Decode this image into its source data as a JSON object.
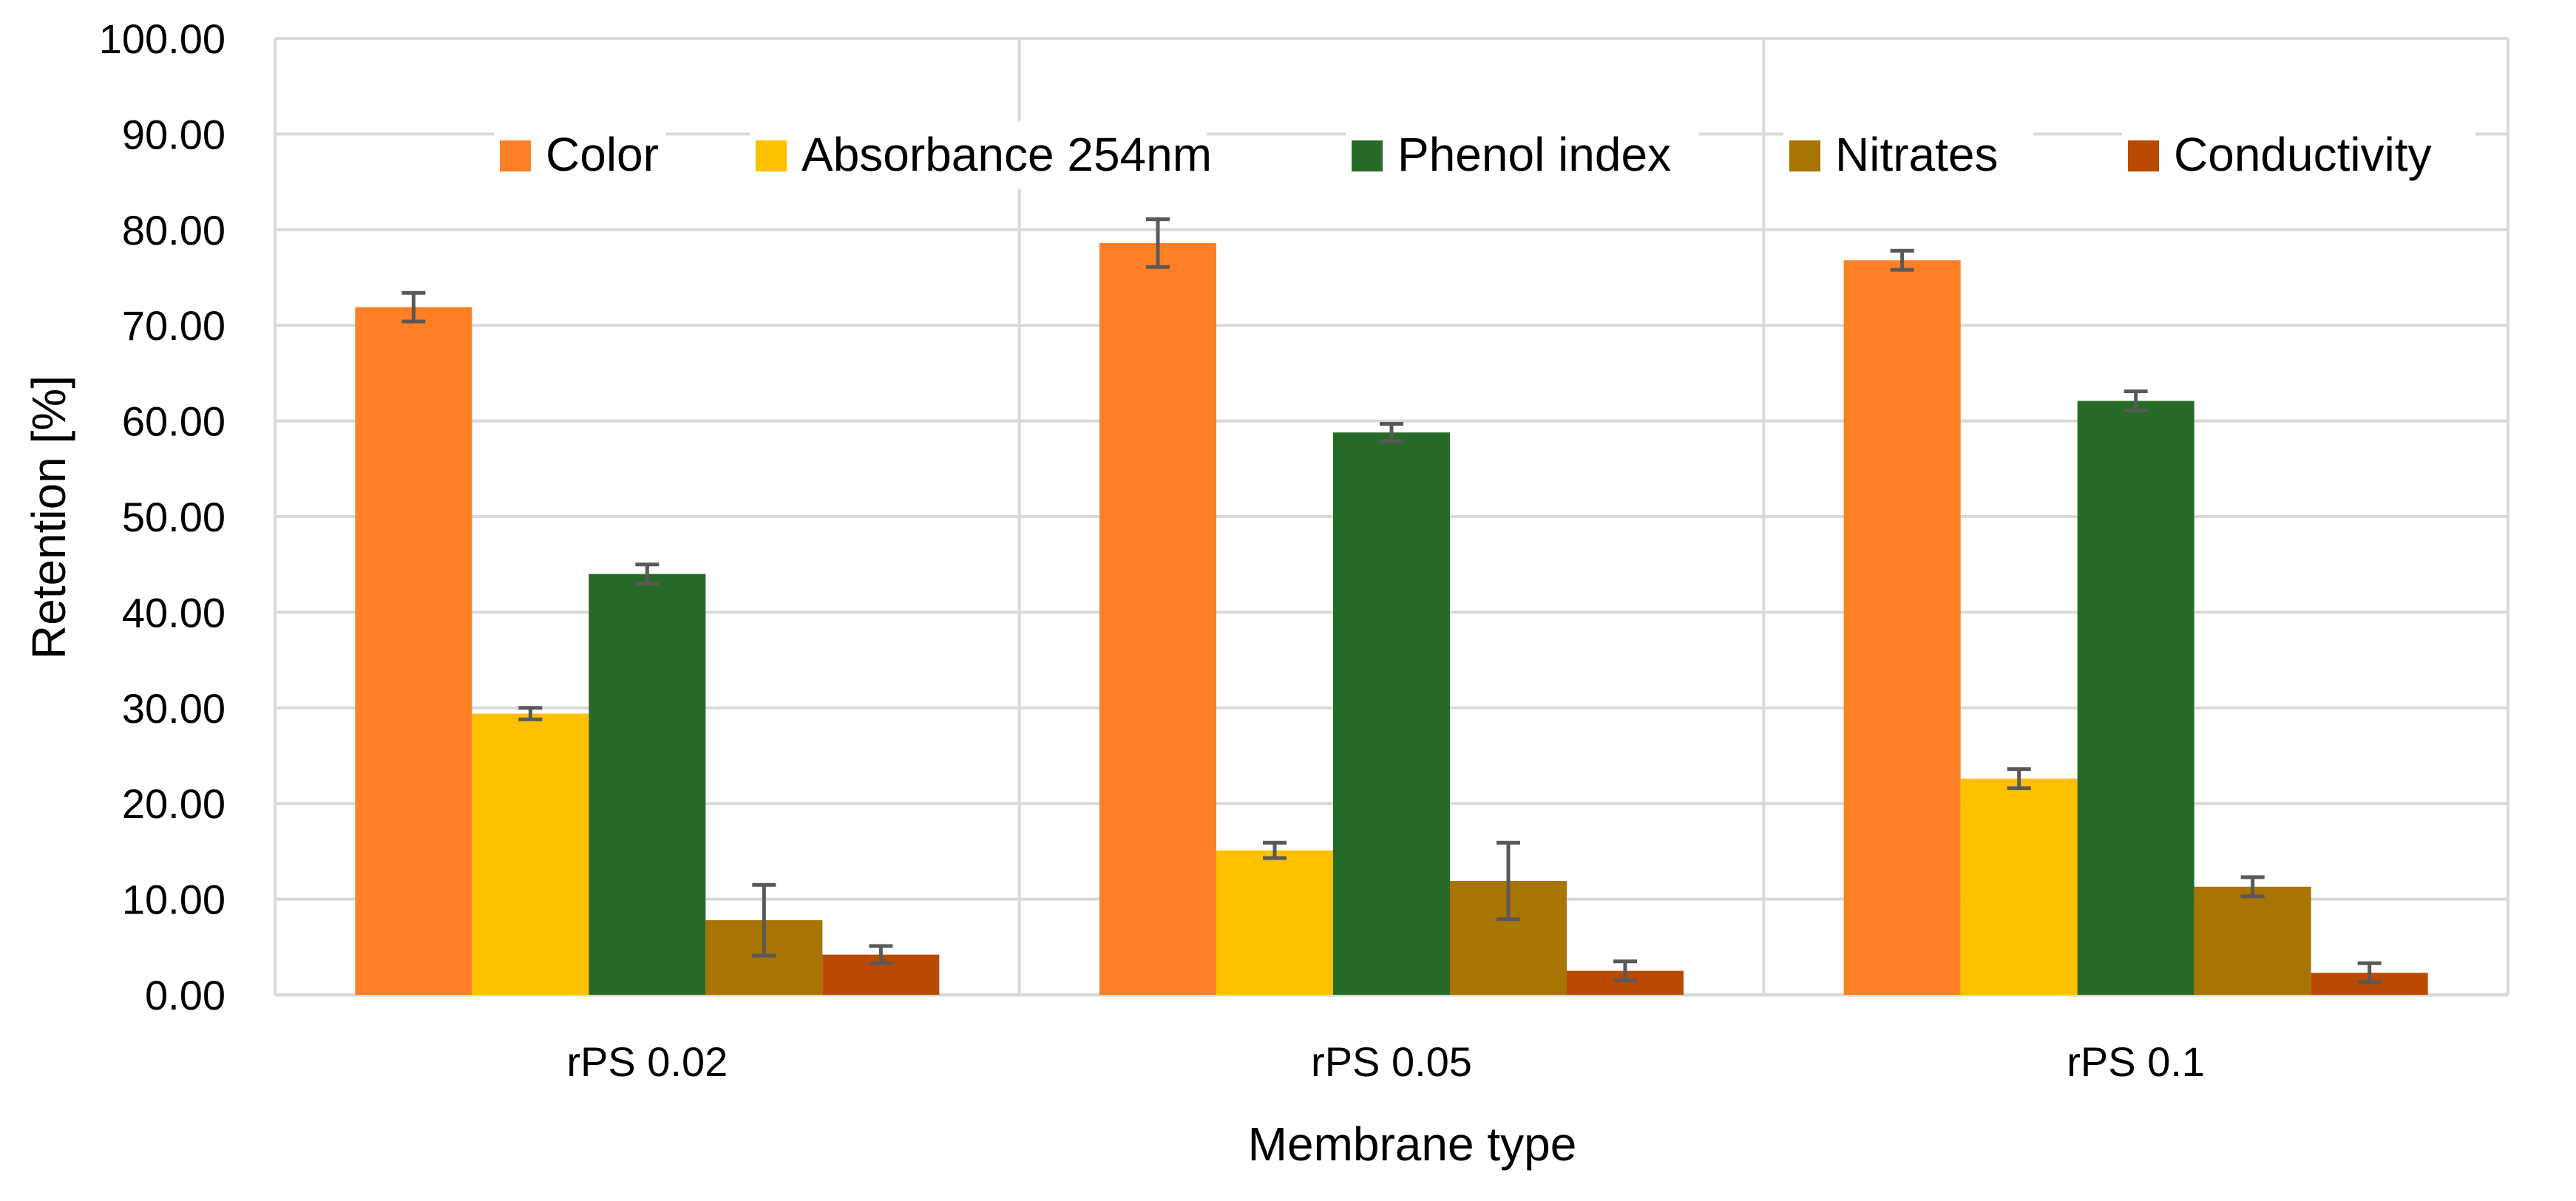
{
  "chart_data": {
    "type": "bar",
    "title": "",
    "xlabel": "Membrane type",
    "ylabel": "Retention [%]",
    "ylim": [
      0,
      100
    ],
    "yticks": [
      "0.00",
      "10.00",
      "20.00",
      "30.00",
      "40.00",
      "50.00",
      "60.00",
      "70.00",
      "80.00",
      "90.00",
      "100.00"
    ],
    "grid": true,
    "legend_position": "top",
    "categories": [
      "rPS 0.02",
      "rPS 0.05",
      "rPS 0.1"
    ],
    "series": [
      {
        "name": "Color",
        "color": "#FF7F27",
        "values": [
          71.9,
          78.6,
          76.8
        ],
        "errors": [
          1.5,
          2.5,
          1.0
        ]
      },
      {
        "name": "Absorbance 254nm",
        "color": "#FFC000",
        "values": [
          29.4,
          15.1,
          22.6
        ],
        "errors": [
          0.6,
          0.8,
          1.0
        ]
      },
      {
        "name": "Phenol index",
        "color": "#276A27",
        "values": [
          44.0,
          58.8,
          62.1
        ],
        "errors": [
          1.0,
          0.9,
          1.0
        ]
      },
      {
        "name": "Nitrates",
        "color": "#A87402",
        "values": [
          7.8,
          11.9,
          11.3
        ],
        "errors": [
          3.7,
          4.0,
          1.0
        ]
      },
      {
        "name": "Conductivity",
        "color": "#BA4A00",
        "values": [
          4.2,
          2.5,
          2.3
        ],
        "errors": [
          0.9,
          1.0,
          1.0
        ]
      }
    ],
    "error_bar_color": "#595959",
    "grid_color": "#D9D9D9"
  }
}
